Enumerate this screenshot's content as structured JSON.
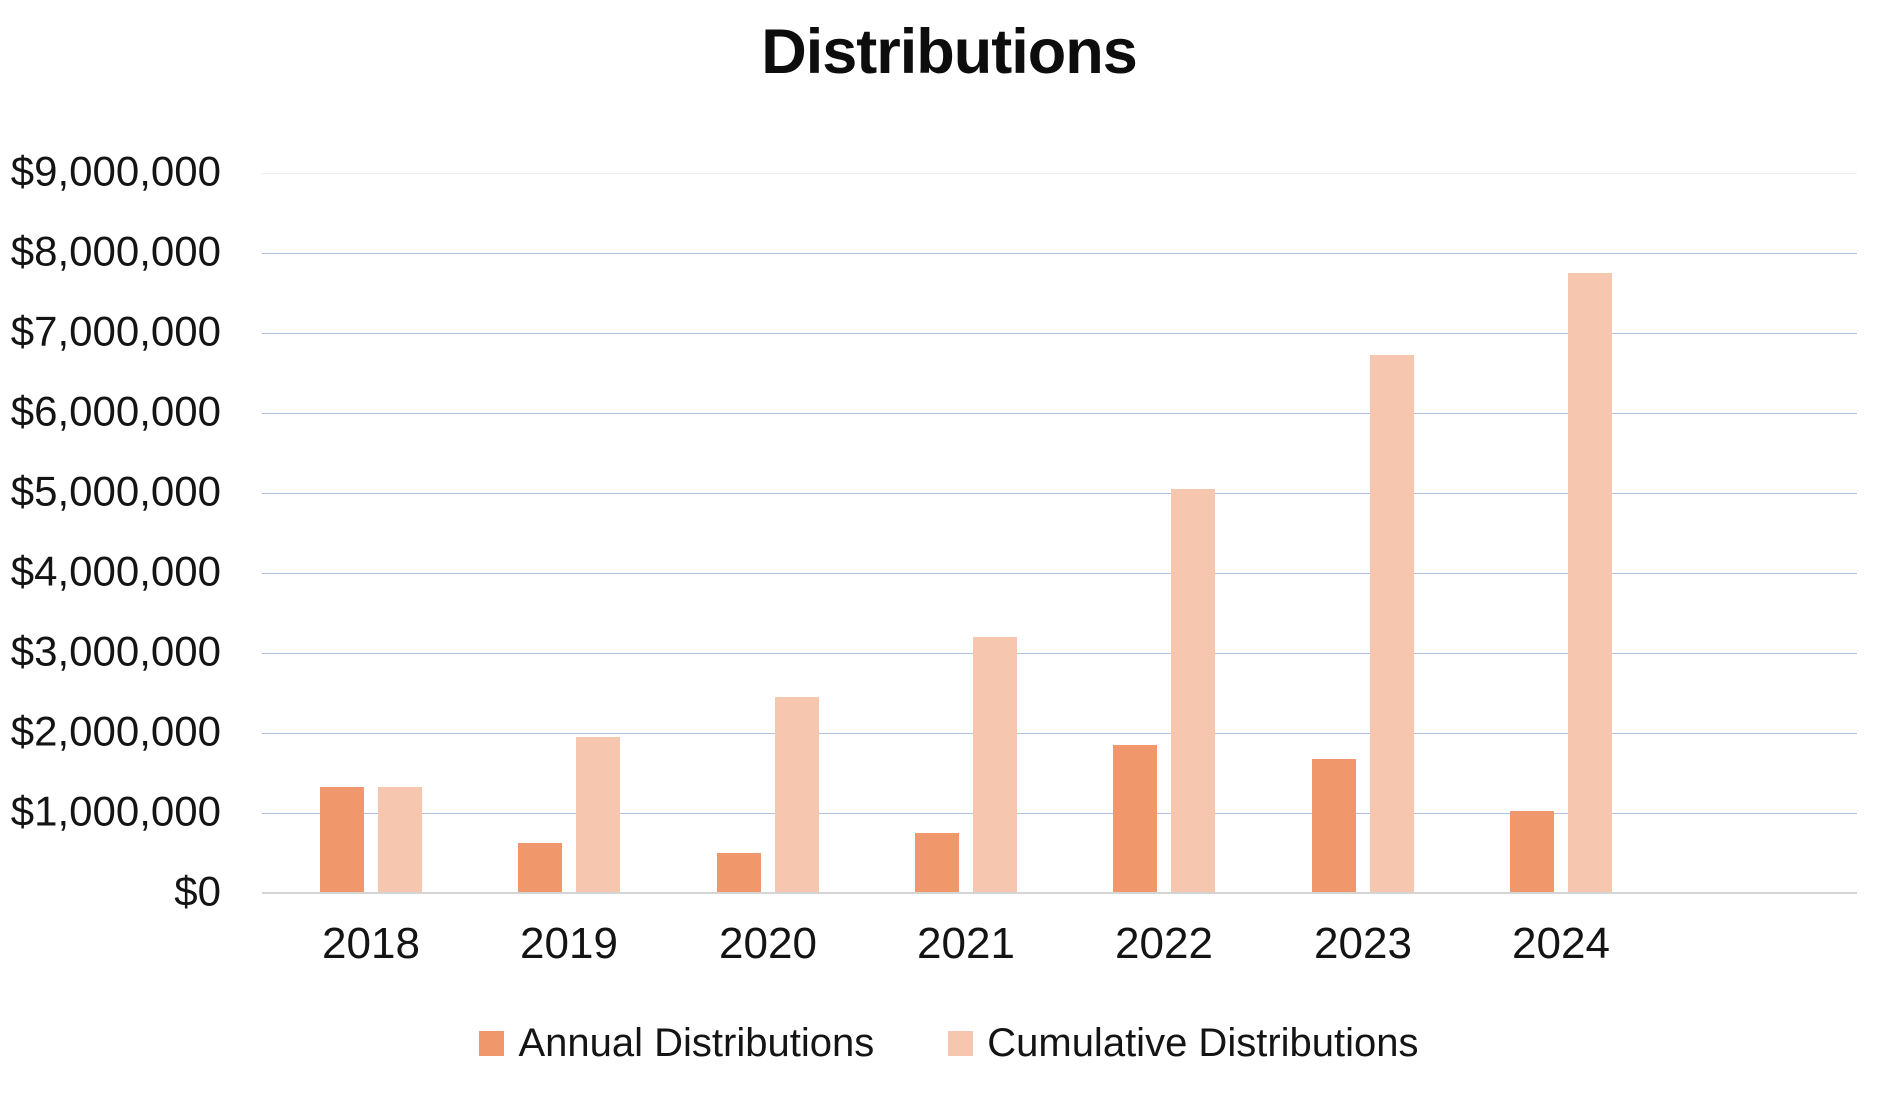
{
  "chart_data": {
    "type": "bar",
    "title": "Distributions",
    "categories": [
      "2018",
      "2019",
      "2020",
      "2021",
      "2022",
      "2023",
      "2024"
    ],
    "series": [
      {
        "name": "Annual Distributions",
        "color": "#F0976C",
        "values": [
          1325000,
          625000,
          500000,
          750000,
          1850000,
          1670000,
          1030000
        ]
      },
      {
        "name": "Cumulative Distributions",
        "color": "#F6C7AE",
        "values": [
          1325000,
          1950000,
          2450000,
          3200000,
          5050000,
          6720000,
          7750000
        ]
      }
    ],
    "xlabel": "",
    "ylabel": "",
    "ylim": [
      0,
      9000000
    ],
    "y_tick_step": 1000000,
    "y_tick_labels": [
      "$0",
      "$1,000,000",
      "$2,000,000",
      "$3,000,000",
      "$4,000,000",
      "$5,000,000",
      "$6,000,000",
      "$7,000,000",
      "$8,000,000",
      "$9,000,000"
    ],
    "grid": true,
    "legend_position": "bottom"
  },
  "colors": {
    "gridline": "#AEC1DE",
    "gridline_top": "#EFEFEF",
    "baseline": "#D4D4D4",
    "text": "#141414"
  }
}
